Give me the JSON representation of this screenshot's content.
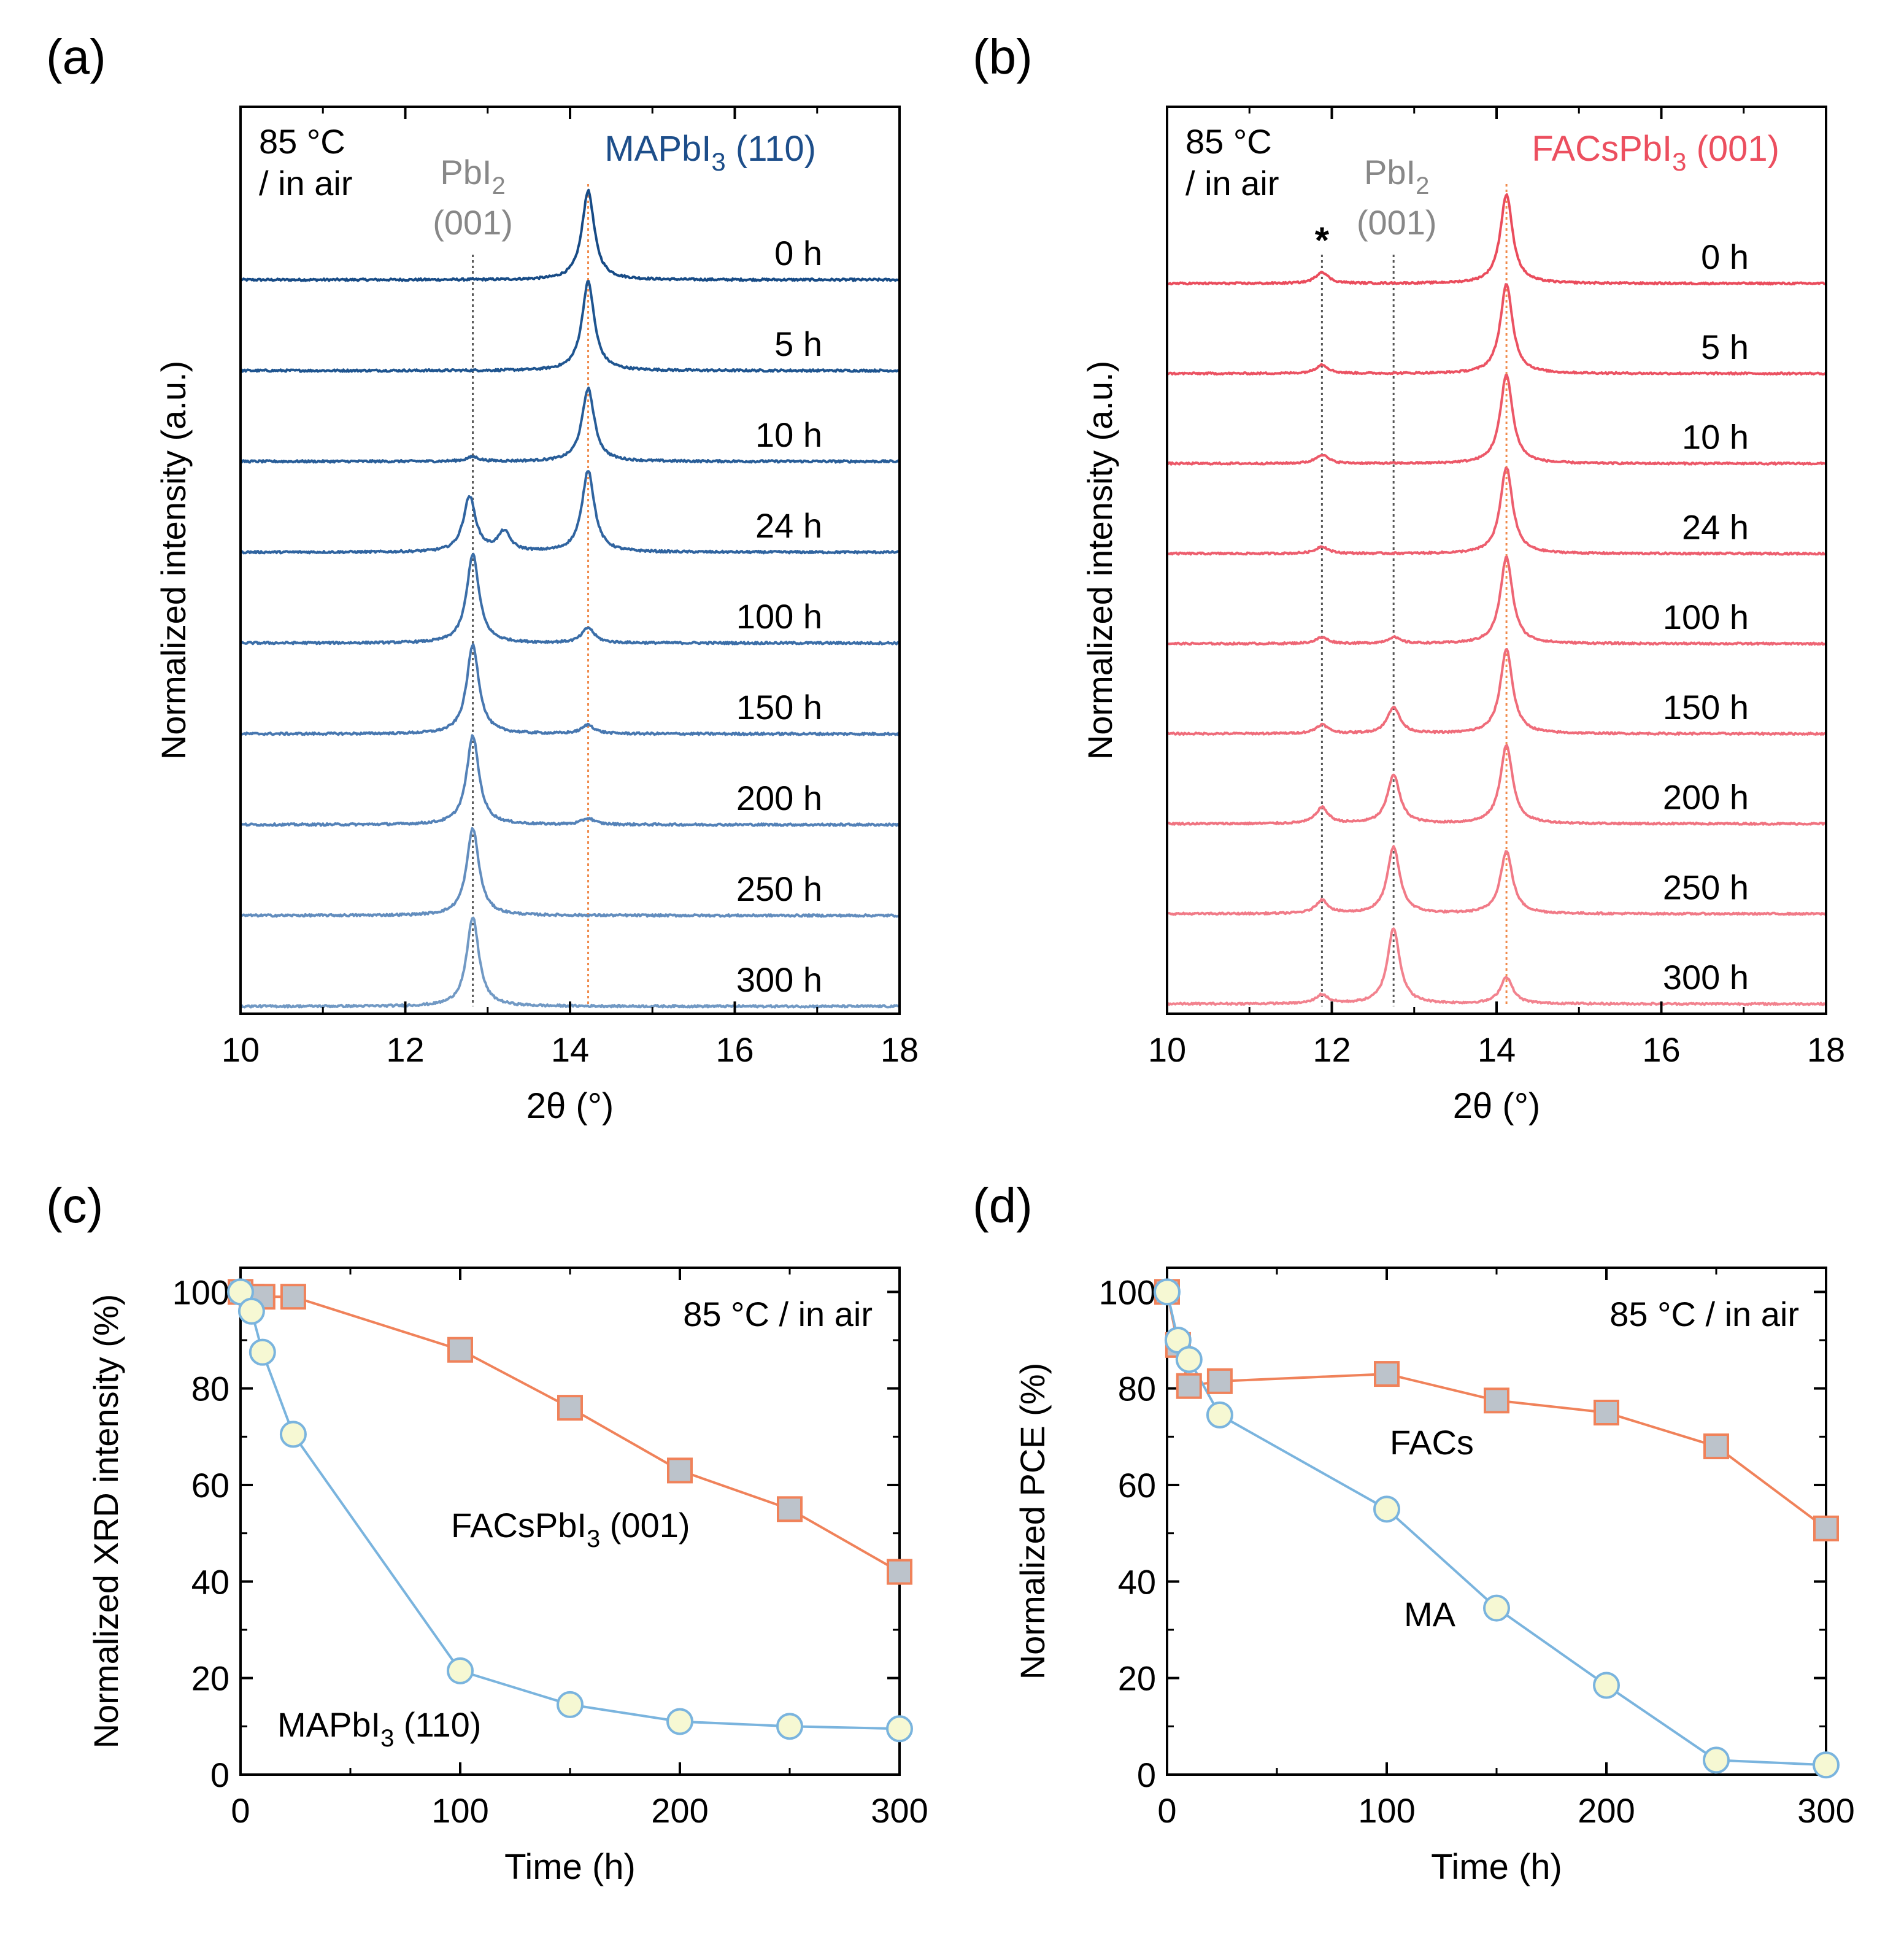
{
  "chart_data": [
    {
      "panel": "(a)",
      "type": "line",
      "subtype": "stacked-xrd",
      "xlabel": "2θ (°)",
      "ylabel": "Normalized intensity (a.u.)",
      "xlim": [
        10,
        18
      ],
      "xticks": [
        10,
        12,
        14,
        16,
        18
      ],
      "condition": [
        "85 °C",
        "/ in air"
      ],
      "ref_labels": [
        {
          "lines": [
            "PbI",
            "2",
            "(001)"
          ],
          "color": "#888888"
        },
        {
          "text": "MAPbI",
          "sub": "3",
          "tail": " (110)",
          "color": "#1d4e8a"
        }
      ],
      "ref_lines": [
        {
          "x": 12.82,
          "color": "#555555"
        },
        {
          "x": 14.22,
          "color": "#f08a4b"
        }
      ],
      "baseline_noise": 0.012,
      "series": [
        {
          "name": "0 h",
          "color": "#174b86",
          "peaks": [
            {
              "x": 14.22,
              "h": 1.0
            }
          ]
        },
        {
          "name": "5 h",
          "color": "#1f5590",
          "peaks": [
            {
              "x": 14.22,
              "h": 1.0
            }
          ]
        },
        {
          "name": "10 h",
          "color": "#285d98",
          "peaks": [
            {
              "x": 12.82,
              "h": 0.05
            },
            {
              "x": 14.22,
              "h": 0.82
            }
          ]
        },
        {
          "name": "24 h",
          "color": "#3064a0",
          "peaks": [
            {
              "x": 12.78,
              "h": 0.62
            },
            {
              "x": 13.2,
              "h": 0.22
            },
            {
              "x": 14.22,
              "h": 0.92
            }
          ]
        },
        {
          "name": "100 h",
          "color": "#3b6ea8",
          "peaks": [
            {
              "x": 12.82,
              "h": 1.0
            },
            {
              "x": 14.22,
              "h": 0.17
            }
          ]
        },
        {
          "name": "150 h",
          "color": "#4777b0",
          "peaks": [
            {
              "x": 12.82,
              "h": 1.0
            },
            {
              "x": 14.22,
              "h": 0.1
            }
          ]
        },
        {
          "name": "200 h",
          "color": "#5482b8",
          "peaks": [
            {
              "x": 12.82,
              "h": 1.0
            },
            {
              "x": 14.22,
              "h": 0.07
            }
          ]
        },
        {
          "name": "250 h",
          "color": "#628dbe",
          "peaks": [
            {
              "x": 12.82,
              "h": 0.98
            }
          ]
        },
        {
          "name": "300 h",
          "color": "#7199c4",
          "peaks": [
            {
              "x": 12.82,
              "h": 1.0
            }
          ]
        }
      ]
    },
    {
      "panel": "(b)",
      "type": "line",
      "subtype": "stacked-xrd",
      "xlabel": "2θ (°)",
      "ylabel": "Normalized intensity (a.u.)",
      "xlim": [
        10,
        18
      ],
      "xticks": [
        10,
        12,
        14,
        16,
        18
      ],
      "condition": [
        "85 °C",
        "/ in air"
      ],
      "ref_labels": [
        {
          "lines": [
            "PbI",
            "2",
            "(001)"
          ],
          "color": "#888888"
        },
        {
          "text": "FACsPbI",
          "sub": "3",
          "tail": " (001)",
          "color": "#ec4f5f"
        }
      ],
      "marker_label": "*",
      "ref_lines": [
        {
          "x": 11.88,
          "color": "#555555"
        },
        {
          "x": 12.75,
          "color": "#555555"
        },
        {
          "x": 14.12,
          "color": "#f08a4b"
        }
      ],
      "baseline_noise": 0.01,
      "series": [
        {
          "name": "0 h",
          "color": "#ea4c5c",
          "peaks": [
            {
              "x": 11.88,
              "h": 0.13
            },
            {
              "x": 14.12,
              "h": 1.0
            }
          ]
        },
        {
          "name": "5 h",
          "color": "#eb5262",
          "peaks": [
            {
              "x": 11.88,
              "h": 0.1
            },
            {
              "x": 14.12,
              "h": 1.0
            }
          ]
        },
        {
          "name": "10 h",
          "color": "#ec5868",
          "peaks": [
            {
              "x": 11.88,
              "h": 0.1
            },
            {
              "x": 14.12,
              "h": 1.0
            }
          ]
        },
        {
          "name": "24 h",
          "color": "#ed5e6e",
          "peaks": [
            {
              "x": 11.88,
              "h": 0.08
            },
            {
              "x": 14.12,
              "h": 0.97
            }
          ]
        },
        {
          "name": "100 h",
          "color": "#ee6574",
          "peaks": [
            {
              "x": 11.88,
              "h": 0.07
            },
            {
              "x": 12.75,
              "h": 0.07
            },
            {
              "x": 14.12,
              "h": 0.97
            }
          ]
        },
        {
          "name": "150 h",
          "color": "#ef6c7a",
          "peaks": [
            {
              "x": 11.88,
              "h": 0.1
            },
            {
              "x": 12.75,
              "h": 0.3
            },
            {
              "x": 14.12,
              "h": 0.95
            }
          ]
        },
        {
          "name": "200 h",
          "color": "#f07380",
          "peaks": [
            {
              "x": 11.88,
              "h": 0.18
            },
            {
              "x": 12.75,
              "h": 0.55
            },
            {
              "x": 14.12,
              "h": 0.88
            }
          ]
        },
        {
          "name": "250 h",
          "color": "#f17a87",
          "peaks": [
            {
              "x": 11.88,
              "h": 0.15
            },
            {
              "x": 12.75,
              "h": 0.75
            },
            {
              "x": 14.12,
              "h": 0.7
            }
          ]
        },
        {
          "name": "300 h",
          "color": "#f2828e",
          "peaks": [
            {
              "x": 11.88,
              "h": 0.1
            },
            {
              "x": 12.75,
              "h": 0.85
            },
            {
              "x": 14.12,
              "h": 0.3
            }
          ]
        }
      ]
    },
    {
      "panel": "(c)",
      "type": "line",
      "xlabel": "Time (h)",
      "ylabel": "Normalized XRD intensity (%)",
      "xlim": [
        0,
        300
      ],
      "ylim": [
        0,
        105
      ],
      "xticks": [
        0,
        100,
        200,
        300
      ],
      "yticks": [
        0,
        20,
        40,
        60,
        80,
        100
      ],
      "condition": "85 °C / in air",
      "series": [
        {
          "name": "FACsPbI",
          "name_sub": "3",
          "name_tail": " (001)",
          "marker": "square",
          "line_color": "#f0825a",
          "fill": "#bcc3cb",
          "x": [
            0,
            5,
            10,
            24,
            100,
            150,
            200,
            250,
            300
          ],
          "y": [
            100,
            99,
            99,
            99,
            88,
            76,
            63,
            55,
            42
          ]
        },
        {
          "name": "MAPbI",
          "name_sub": "3",
          "name_tail": " (110)",
          "marker": "circle",
          "line_color": "#7ab4de",
          "fill": "#f6f8d3",
          "x": [
            0,
            5,
            10,
            24,
            100,
            150,
            200,
            250,
            300
          ],
          "y": [
            100,
            96,
            87.5,
            70.5,
            21.5,
            14.5,
            11,
            10,
            9.5
          ]
        }
      ]
    },
    {
      "panel": "(d)",
      "type": "line",
      "xlabel": "Time (h)",
      "ylabel": "Normalized PCE (%)",
      "xlim": [
        0,
        300
      ],
      "ylim": [
        0,
        105
      ],
      "xticks": [
        0,
        100,
        200,
        300
      ],
      "yticks": [
        0,
        20,
        40,
        60,
        80,
        100
      ],
      "condition": "85 °C / in air",
      "series": [
        {
          "name": "FACs",
          "marker": "square",
          "line_color": "#f0825a",
          "fill": "#bcc3cb",
          "x": [
            0,
            5,
            10,
            24,
            100,
            150,
            200,
            250,
            300
          ],
          "y": [
            100,
            89,
            80.5,
            81.5,
            83,
            77.5,
            75,
            68,
            51
          ]
        },
        {
          "name": "MA",
          "marker": "circle",
          "line_color": "#7ab4de",
          "fill": "#f6f8d3",
          "x": [
            0,
            5,
            10,
            24,
            100,
            150,
            200,
            250,
            300
          ],
          "y": [
            100,
            90,
            86,
            74.5,
            55,
            34.5,
            18.5,
            3,
            2
          ]
        }
      ]
    }
  ]
}
